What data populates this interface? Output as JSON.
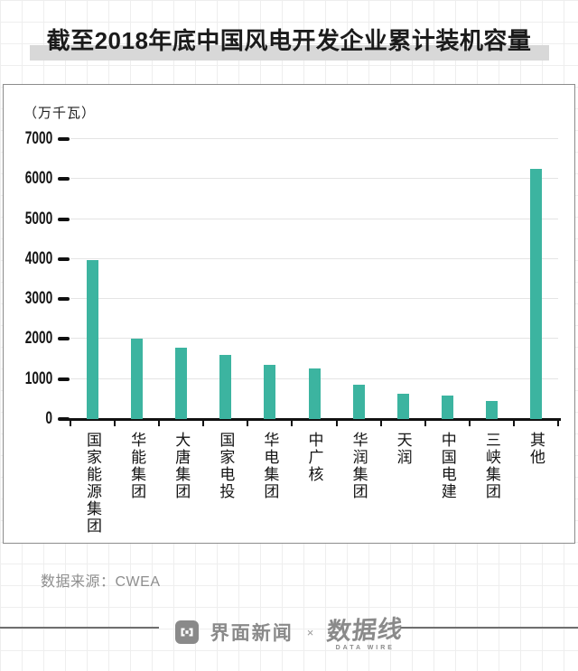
{
  "title": {
    "text": "截至2018年底中国风电开发企业累计装机容量"
  },
  "chart_data": {
    "type": "bar",
    "title": "截至2018年底中国风电开发企业累计装机容量",
    "unit_label": "（万千瓦）",
    "ylabel": "万千瓦",
    "xlabel": "",
    "ylim": [
      0,
      7000
    ],
    "yticks": [
      0,
      1000,
      2000,
      3000,
      4000,
      5000,
      6000,
      7000
    ],
    "grid": true,
    "legend_position": "none",
    "bar_color": "#3cb4a0",
    "categories": [
      "国家能源集团",
      "华能集团",
      "大唐集团",
      "国家电投",
      "华电集团",
      "中广核",
      "华润集团",
      "天润",
      "中国电建",
      "三峡集团",
      "其他"
    ],
    "values": [
      3970,
      2010,
      1790,
      1600,
      1350,
      1270,
      860,
      630,
      590,
      450,
      6260
    ]
  },
  "source": {
    "text": "数据来源：CWEA"
  },
  "footer": {
    "jiemian_label": "界面新闻",
    "separator": "×",
    "datawire_label": "数据线",
    "datawire_sub": "DATA WIRE"
  },
  "colors": {
    "bar": "#3cb4a0",
    "title_highlight": "#d8d8d8",
    "gridline": "#e4e4e4",
    "axis": "#111111",
    "muted_text": "#8a8a8a"
  }
}
